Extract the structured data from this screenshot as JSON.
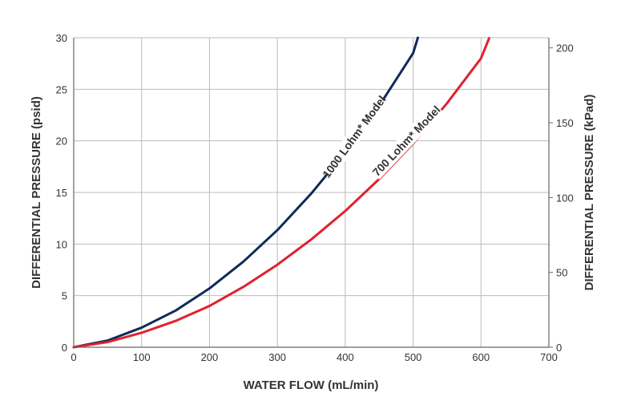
{
  "chart_data": {
    "type": "line",
    "xlabel": "WATER FLOW (mL/min)",
    "ylabel": "DIFFERENTIAL PRESSURE (psid)",
    "y2label": "DIFFERENTIAL PRESSURE (kPad)",
    "xlim": [
      0,
      700
    ],
    "ylim": [
      0,
      30
    ],
    "y2lim": [
      0,
      206.8
    ],
    "xticks": [
      "0",
      "100",
      "200",
      "300",
      "400",
      "500",
      "600",
      "700"
    ],
    "yticks": [
      "0",
      "5",
      "10",
      "15",
      "20",
      "25",
      "30"
    ],
    "y2ticks": [
      "0",
      "50",
      "100",
      "150",
      "200"
    ],
    "grid": true,
    "colors": {
      "series_1000": "#0f2a5a",
      "series_700": "#e0212f",
      "grid": "#bbbbbb",
      "axis": "#666666"
    },
    "series": [
      {
        "name": "1000 Lohm* Model",
        "color": "#0f2a5a",
        "x": [
          0,
          50,
          100,
          150,
          200,
          250,
          300,
          350,
          400,
          450,
          500,
          507
        ],
        "y": [
          0,
          0.65,
          1.9,
          3.55,
          5.7,
          8.3,
          11.35,
          14.9,
          18.9,
          23.4,
          28.5,
          30
        ]
      },
      {
        "name": "700 Lohm* Model",
        "color": "#e0212f",
        "x": [
          0,
          50,
          100,
          150,
          200,
          250,
          300,
          350,
          400,
          450,
          500,
          550,
          600,
          612
        ],
        "y": [
          0,
          0.5,
          1.4,
          2.55,
          4.0,
          5.85,
          8.0,
          10.45,
          13.2,
          16.3,
          19.75,
          23.65,
          28.0,
          29.95
        ]
      }
    ],
    "labels": [
      {
        "series": 0,
        "text": "1000 Lohm* Model",
        "x": 413,
        "y": 20.4
      },
      {
        "series": 1,
        "text": "700 Lohm* Model",
        "x": 490,
        "y": 20.0
      }
    ]
  }
}
